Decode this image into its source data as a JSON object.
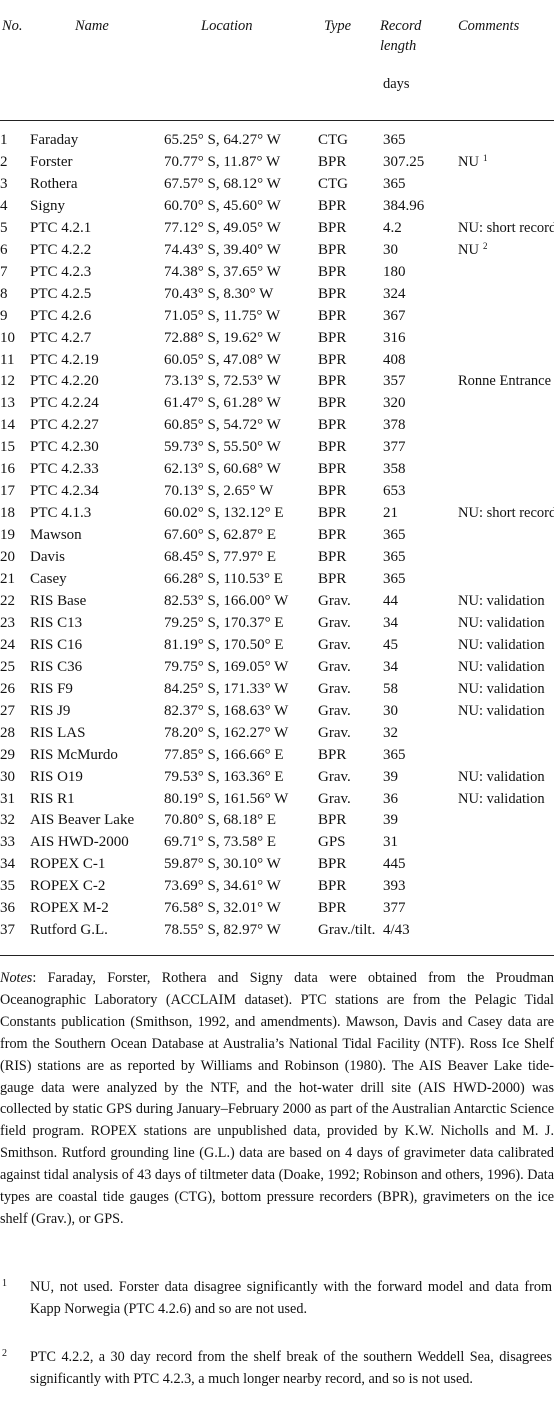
{
  "headers": {
    "no": "No.",
    "name": "Name",
    "location": "Location",
    "type": "Type",
    "record_length_line1": "Record",
    "record_length_line2": "length",
    "record_length_unit": "days",
    "comments": "Comments"
  },
  "rows": [
    {
      "no": "1",
      "name": "Faraday",
      "location": "65.25° S, 64.27° W",
      "type": "CTG",
      "length": "365",
      "comment": "",
      "sup": ""
    },
    {
      "no": "2",
      "name": "Forster",
      "location": "70.77° S, 11.87° W",
      "type": "BPR",
      "length": "307.25",
      "comment": "NU",
      "sup": "1"
    },
    {
      "no": "3",
      "name": "Rothera",
      "location": "67.57° S, 68.12° W",
      "type": "CTG",
      "length": "365",
      "comment": "",
      "sup": ""
    },
    {
      "no": "4",
      "name": "Signy",
      "location": "60.70° S, 45.60° W",
      "type": "BPR",
      "length": "384.96",
      "comment": "",
      "sup": ""
    },
    {
      "no": "5",
      "name": "PTC 4.2.1",
      "location": "77.12° S, 49.05° W",
      "type": "BPR",
      "length": "4.2",
      "comment": "NU: short record",
      "sup": ""
    },
    {
      "no": "6",
      "name": "PTC 4.2.2",
      "location": "74.43° S, 39.40° W",
      "type": "BPR",
      "length": "30",
      "comment": "NU",
      "sup": "2"
    },
    {
      "no": "7",
      "name": "PTC 4.2.3",
      "location": "74.38° S, 37.65° W",
      "type": "BPR",
      "length": "180",
      "comment": "",
      "sup": ""
    },
    {
      "no": "8",
      "name": "PTC 4.2.5",
      "location": "70.43° S, 8.30° W",
      "type": "BPR",
      "length": "324",
      "comment": "",
      "sup": ""
    },
    {
      "no": "9",
      "name": "PTC 4.2.6",
      "location": "71.05° S, 11.75° W",
      "type": "BPR",
      "length": "367",
      "comment": "",
      "sup": ""
    },
    {
      "no": "10",
      "name": "PTC 4.2.7",
      "location": "72.88° S, 19.62° W",
      "type": "BPR",
      "length": "316",
      "comment": "",
      "sup": ""
    },
    {
      "no": "11",
      "name": "PTC 4.2.19",
      "location": "60.05° S, 47.08° W",
      "type": "BPR",
      "length": "408",
      "comment": "",
      "sup": ""
    },
    {
      "no": "12",
      "name": "PTC 4.2.20",
      "location": "73.13° S, 72.53° W",
      "type": "BPR",
      "length": "357",
      "comment": "Ronne Entrance",
      "sup": ""
    },
    {
      "no": "13",
      "name": "PTC 4.2.24",
      "location": "61.47° S, 61.28° W",
      "type": "BPR",
      "length": "320",
      "comment": "",
      "sup": ""
    },
    {
      "no": "14",
      "name": "PTC 4.2.27",
      "location": "60.85° S, 54.72° W",
      "type": "BPR",
      "length": "378",
      "comment": "",
      "sup": ""
    },
    {
      "no": "15",
      "name": "PTC 4.2.30",
      "location": "59.73° S, 55.50° W",
      "type": "BPR",
      "length": "377",
      "comment": "",
      "sup": ""
    },
    {
      "no": "16",
      "name": "PTC 4.2.33",
      "location": "62.13° S, 60.68° W",
      "type": "BPR",
      "length": "358",
      "comment": "",
      "sup": ""
    },
    {
      "no": "17",
      "name": "PTC 4.2.34",
      "location": "70.13° S, 2.65° W",
      "type": "BPR",
      "length": "653",
      "comment": "",
      "sup": ""
    },
    {
      "no": "18",
      "name": "PTC 4.1.3",
      "location": "60.02° S, 132.12° E",
      "type": "BPR",
      "length": "21",
      "comment": "NU: short record",
      "sup": ""
    },
    {
      "no": "19",
      "name": "Mawson",
      "location": "67.60° S, 62.87° E",
      "type": "BPR",
      "length": "365",
      "comment": "",
      "sup": ""
    },
    {
      "no": "20",
      "name": "Davis",
      "location": "68.45° S, 77.97° E",
      "type": "BPR",
      "length": "365",
      "comment": "",
      "sup": ""
    },
    {
      "no": "21",
      "name": "Casey",
      "location": "66.28° S, 110.53° E",
      "type": "BPR",
      "length": "365",
      "comment": "",
      "sup": ""
    },
    {
      "no": "22",
      "name": "RIS Base",
      "location": "82.53° S, 166.00° W",
      "type": "Grav.",
      "length": "44",
      "comment": "NU: validation",
      "sup": ""
    },
    {
      "no": "23",
      "name": "RIS C13",
      "location": "79.25° S, 170.37° E",
      "type": "Grav.",
      "length": "34",
      "comment": "NU: validation",
      "sup": ""
    },
    {
      "no": "24",
      "name": "RIS C16",
      "location": "81.19° S, 170.50° E",
      "type": "Grav.",
      "length": "45",
      "comment": "NU: validation",
      "sup": ""
    },
    {
      "no": "25",
      "name": "RIS C36",
      "location": "79.75° S, 169.05° W",
      "type": "Grav.",
      "length": "34",
      "comment": "NU: validation",
      "sup": ""
    },
    {
      "no": "26",
      "name": "RIS F9",
      "location": "84.25° S, 171.33° W",
      "type": "Grav.",
      "length": "58",
      "comment": "NU: validation",
      "sup": ""
    },
    {
      "no": "27",
      "name": "RIS J9",
      "location": "82.37° S, 168.63° W",
      "type": "Grav.",
      "length": "30",
      "comment": "NU: validation",
      "sup": ""
    },
    {
      "no": "28",
      "name": "RIS LAS",
      "location": "78.20° S, 162.27° W",
      "type": "Grav.",
      "length": "32",
      "comment": "",
      "sup": ""
    },
    {
      "no": "29",
      "name": "RIS McMurdo",
      "location": "77.85° S, 166.66° E",
      "type": "BPR",
      "length": "365",
      "comment": "",
      "sup": ""
    },
    {
      "no": "30",
      "name": "RIS O19",
      "location": "79.53° S, 163.36° E",
      "type": "Grav.",
      "length": "39",
      "comment": "NU: validation",
      "sup": ""
    },
    {
      "no": "31",
      "name": "RIS R1",
      "location": "80.19° S, 161.56° W",
      "type": "Grav.",
      "length": "36",
      "comment": "NU: validation",
      "sup": ""
    },
    {
      "no": "32",
      "name": "AIS Beaver Lake",
      "location": "70.80° S, 68.18° E",
      "type": "BPR",
      "length": "39",
      "comment": "",
      "sup": ""
    },
    {
      "no": "33",
      "name": "AIS HWD-2000",
      "location": "69.71° S, 73.58° E",
      "type": "GPS",
      "length": "31",
      "comment": "",
      "sup": ""
    },
    {
      "no": "34",
      "name": "ROPEX C-1",
      "location": "59.87° S, 30.10° W",
      "type": "BPR",
      "length": "445",
      "comment": "",
      "sup": ""
    },
    {
      "no": "35",
      "name": "ROPEX C-2",
      "location": "73.69° S, 34.61° W",
      "type": "BPR",
      "length": "393",
      "comment": "",
      "sup": ""
    },
    {
      "no": "36",
      "name": "ROPEX M-2",
      "location": "76.58° S, 32.01° W",
      "type": "BPR",
      "length": "377",
      "comment": "",
      "sup": ""
    },
    {
      "no": "37",
      "name": "Rutford G.L.",
      "location": "78.55° S, 82.97° W",
      "type": "Grav./tilt.",
      "length": "4/43",
      "comment": "",
      "sup": ""
    }
  ],
  "notes": {
    "label": "Notes",
    "text": ": Faraday, Forster, Rothera and Signy data were obtained from the Proudman Oceanographic Laboratory (ACCLAIM dataset). PTC stations are from the Pelagic Tidal Constants publication (Smithson, 1992, and amendments). Mawson, Davis and Casey data are from the Southern Ocean Database at Australia’s National Tidal Facility (NTF). Ross Ice Shelf (RIS) stations are as reported by Williams and Robinson (1980). The AIS Beaver Lake tide-gauge data were analyzed by the NTF, and the hot-water drill site (AIS HWD-2000) was collected by static GPS during January–February 2000 as part of the Australian Antarctic Science field program. ROPEX stations are unpublished data, provided by K.W. Nicholls and M. J. Smithson. Rutford grounding line (G.L.) data are based on 4 days of gravimeter data calibrated against tidal analysis of 43 days of tiltmeter data (Doake, 1992; Robinson and others, 1996). Data types are coastal tide gauges (CTG), bottom pressure recorders (BPR), gravimeters on the ice shelf (Grav.), or GPS."
  },
  "footnotes": [
    {
      "mark": "1",
      "text": "NU, not used. Forster data disagree significantly with the forward model and data from Kapp Norwegia (PTC 4.2.6) and so are not used."
    },
    {
      "mark": "2",
      "text": "PTC 4.2.2, a 30 day record from the shelf break of the southern Weddell Sea, disagrees significantly with PTC 4.2.3, a much longer nearby record, and so is not used."
    }
  ]
}
